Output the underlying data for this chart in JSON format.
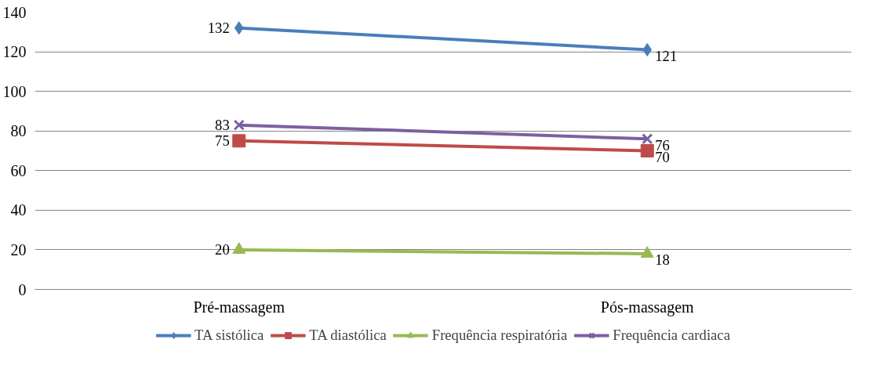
{
  "chart_data": {
    "type": "line",
    "categories": [
      "Pré-massagem",
      "Pós-massagem"
    ],
    "series": [
      {
        "name": "TA sistólica",
        "color": "#4a7ebb",
        "values": [
          132,
          121
        ],
        "marker": "diamond"
      },
      {
        "name": "TA diastólica",
        "color": "#be4b48",
        "values": [
          75,
          70
        ],
        "marker": "square"
      },
      {
        "name": "Frequência respiratória",
        "color": "#98b954",
        "values": [
          20,
          18
        ],
        "marker": "triangle"
      },
      {
        "name": "Frequência cardiaca",
        "color": "#7d60a0",
        "values": [
          83,
          76
        ],
        "marker": "cross"
      }
    ],
    "ylim": [
      0,
      140
    ],
    "yticks": [
      0,
      20,
      40,
      60,
      80,
      100,
      120,
      140
    ],
    "grid": "y",
    "legend": "bottom",
    "data_labels": true,
    "line_style": "solid"
  }
}
